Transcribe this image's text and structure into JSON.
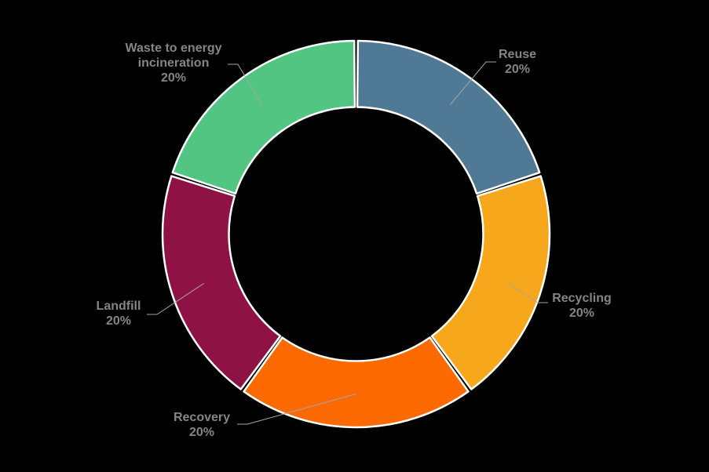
{
  "chart_data": {
    "type": "pie",
    "subtype": "donut",
    "categories": [
      "Reuse",
      "Recycling",
      "Recovery",
      "Landfill",
      "Waste to energy incineration"
    ],
    "values": [
      20,
      20,
      20,
      20,
      20
    ],
    "slices": [
      {
        "label": "Reuse",
        "value": 20,
        "value_label": "20%",
        "color": "#4F7994"
      },
      {
        "label": "Recycling",
        "value": 20,
        "value_label": "20%",
        "color": "#F7A71B"
      },
      {
        "label": "Recovery",
        "value": 20,
        "value_label": "20%",
        "color": "#FD6A02"
      },
      {
        "label": "Landfill",
        "value": 20,
        "value_label": "20%",
        "color": "#8E1244"
      },
      {
        "label": "Waste to energy incineration",
        "value": 20,
        "value_label": "20%",
        "color": "#52C583"
      }
    ],
    "start_angle_deg": 0,
    "direction": "clockwise",
    "inner_radius_ratio": 0.66,
    "legend": "none",
    "grid": false,
    "background_color": "#000000",
    "slice_border_color": "#FFFFFF",
    "label_color": "#858585",
    "leader_line_color": "#A6A6A6"
  }
}
